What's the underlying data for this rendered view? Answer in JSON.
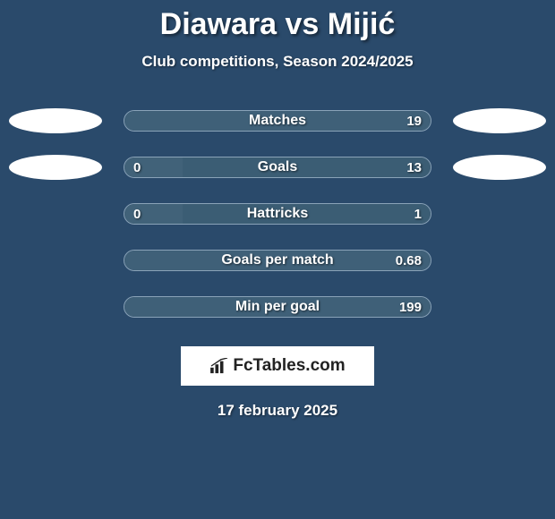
{
  "title": "Diawara vs Mijić",
  "subtitle": "Club competitions, Season 2024/2025",
  "colors": {
    "background": "#2a4a6b",
    "left_fill": "#416279",
    "right_fill": "#3b5d74",
    "full_fill": "#3f6078",
    "border": "#8aa3b8",
    "text": "#ffffff",
    "logo_bg": "#ffffff",
    "logo_text": "#222222"
  },
  "bar_container_width": 344,
  "ellipse": {
    "width": 104,
    "height": 28
  },
  "stats": [
    {
      "label": "Matches",
      "left_value": "",
      "right_value": "19",
      "left_width_pct": 0,
      "right_width_pct": 100,
      "show_left_ellipse": true,
      "show_right_ellipse": true,
      "fill_mode": "full"
    },
    {
      "label": "Goals",
      "left_value": "0",
      "right_value": "13",
      "left_width_pct": 19,
      "right_width_pct": 81,
      "show_left_ellipse": true,
      "show_right_ellipse": true,
      "fill_mode": "split"
    },
    {
      "label": "Hattricks",
      "left_value": "0",
      "right_value": "1",
      "left_width_pct": 19,
      "right_width_pct": 81,
      "show_left_ellipse": false,
      "show_right_ellipse": false,
      "fill_mode": "split"
    },
    {
      "label": "Goals per match",
      "left_value": "",
      "right_value": "0.68",
      "left_width_pct": 0,
      "right_width_pct": 100,
      "show_left_ellipse": false,
      "show_right_ellipse": false,
      "fill_mode": "full"
    },
    {
      "label": "Min per goal",
      "left_value": "",
      "right_value": "199",
      "left_width_pct": 0,
      "right_width_pct": 100,
      "show_left_ellipse": false,
      "show_right_ellipse": false,
      "fill_mode": "full"
    }
  ],
  "logo": {
    "text": "FcTables.com"
  },
  "date": "17 february 2025",
  "typography": {
    "title_fontsize": 34,
    "subtitle_fontsize": 17,
    "stat_label_fontsize": 16,
    "stat_value_fontsize": 15,
    "date_fontsize": 17
  }
}
